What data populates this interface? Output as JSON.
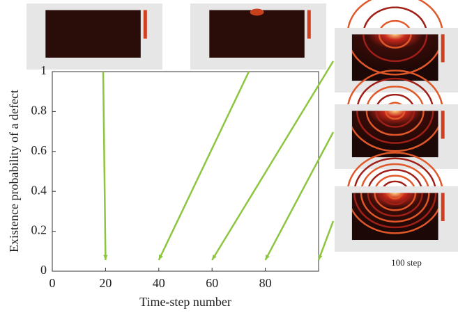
{
  "chart_data": {
    "type": "snapshot-axes",
    "ylabel": "Existence probability of a defect",
    "xlabel": "Time-step number",
    "xlim": [
      0,
      100
    ],
    "xticks": [
      0,
      20,
      40,
      60,
      80
    ],
    "ylim": [
      0,
      1
    ],
    "yticks": [
      0,
      0.2,
      0.4,
      0.6,
      0.8,
      1
    ],
    "arrow_color": "#8cc63f",
    "snapshots": [
      {
        "step": 20
      },
      {
        "step": 40
      },
      {
        "step": 60
      },
      {
        "step": 80
      },
      {
        "step": 100,
        "label": "100 step"
      }
    ]
  }
}
